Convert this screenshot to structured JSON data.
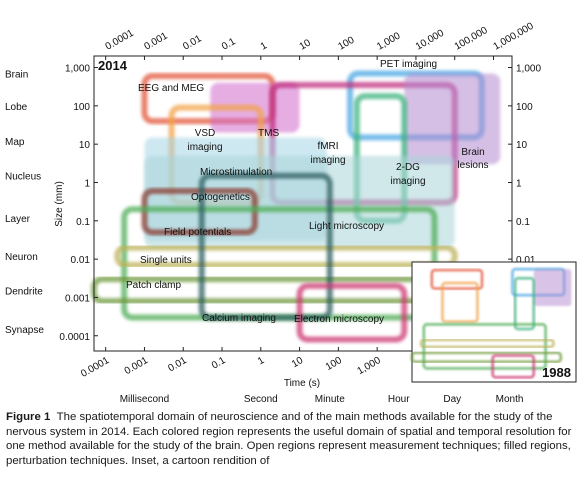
{
  "chart_data": {
    "type": "region",
    "year_label": "2014",
    "inset_year_label": "1988",
    "x_axis": {
      "label": "Time (s)",
      "scale": "log",
      "range": [
        5e-05,
        3000000
      ],
      "ticks": [
        {
          "value": 0.0001,
          "label": "0.0001"
        },
        {
          "value": 0.001,
          "label": "0.001"
        },
        {
          "value": 0.01,
          "label": "0.01"
        },
        {
          "value": 0.1,
          "label": "0.1"
        },
        {
          "value": 1,
          "label": "1"
        },
        {
          "value": 10,
          "label": "10"
        },
        {
          "value": 100,
          "label": "100"
        },
        {
          "value": 1000,
          "label": "1,000"
        },
        {
          "value": 10000,
          "label": "10,000"
        },
        {
          "value": 100000,
          "label": "100,000"
        },
        {
          "value": 1000000,
          "label": "1,000,000"
        }
      ],
      "bottom_ticks": [
        {
          "value": 0.0001,
          "label": "0.0001"
        },
        {
          "value": 0.001,
          "label": "0.001"
        },
        {
          "value": 0.01,
          "label": "0.01"
        },
        {
          "value": 0.1,
          "label": "0.1"
        },
        {
          "value": 1,
          "label": "1"
        },
        {
          "value": 10,
          "label": "10"
        },
        {
          "value": 100,
          "label": "100"
        },
        {
          "value": 1000,
          "label": "1,000"
        }
      ],
      "time_words": [
        {
          "value": 0.001,
          "label": "Millisecond"
        },
        {
          "value": 1,
          "label": "Second"
        },
        {
          "value": 60,
          "label": "Minute"
        },
        {
          "value": 3600,
          "label": "Hour"
        },
        {
          "value": 86400,
          "label": "Day"
        },
        {
          "value": 2592000,
          "label": "Month"
        }
      ]
    },
    "y_axis": {
      "label": "Size (mm)",
      "scale": "log",
      "range": [
        4e-05,
        2000
      ],
      "ticks": [
        {
          "value": 1000,
          "label": "1,000"
        },
        {
          "value": 100,
          "label": "100"
        },
        {
          "value": 10,
          "label": "10"
        },
        {
          "value": 1,
          "label": "1"
        },
        {
          "value": 0.1,
          "label": "0.1"
        },
        {
          "value": 0.01,
          "label": "0.01"
        },
        {
          "value": 0.001,
          "label": "0.001"
        },
        {
          "value": 0.0001,
          "label": "0.0001"
        }
      ],
      "levels": [
        {
          "value": 700,
          "label": "Brain"
        },
        {
          "value": 100,
          "label": "Lobe"
        },
        {
          "value": 12,
          "label": "Map"
        },
        {
          "value": 1.5,
          "label": "Nucleus"
        },
        {
          "value": 0.12,
          "label": "Layer"
        },
        {
          "value": 0.012,
          "label": "Neuron"
        },
        {
          "value": 0.0015,
          "label": "Dendrite"
        },
        {
          "value": 0.00015,
          "label": "Synapse"
        }
      ]
    },
    "regions": [
      {
        "name": "EEG and MEG",
        "x": [
          0.001,
          2
        ],
        "y": [
          40,
          600
        ],
        "color": "#e2563b",
        "kind": "measurement"
      },
      {
        "name": "TMS",
        "x": [
          0.05,
          10
        ],
        "y": [
          20,
          400
        ],
        "color": "#d06acb",
        "kind": "perturbation"
      },
      {
        "name": "VSD imaging",
        "x": [
          0.005,
          1
        ],
        "y": [
          0.3,
          90
        ],
        "color": "#f3a34a",
        "kind": "measurement"
      },
      {
        "name": "PET imaging",
        "x": [
          200,
          500000
        ],
        "y": [
          15,
          700
        ],
        "color": "#4aa7e3",
        "kind": "measurement"
      },
      {
        "name": "fMRI imaging",
        "x": [
          2,
          100000
        ],
        "y": [
          0.3,
          350
        ],
        "color": "#c02d7e",
        "kind": "measurement"
      },
      {
        "name": "Brain lesions",
        "x": [
          5000,
          1500000
        ],
        "y": [
          3,
          700
        ],
        "color": "#b48ad0",
        "kind": "perturbation"
      },
      {
        "name": "2-DG imaging",
        "x": [
          300,
          5000
        ],
        "y": [
          0.1,
          180
        ],
        "color": "#3fb37f",
        "kind": "measurement"
      },
      {
        "name": "Microstimulation",
        "x": [
          0.001,
          50
        ],
        "y": [
          0.03,
          15
        ],
        "color": "#a5d6e6",
        "kind": "perturbation"
      },
      {
        "name": "Optogenetics",
        "x": [
          0.001,
          100000
        ],
        "y": [
          0.02,
          5
        ],
        "color": "#a9d6d8",
        "kind": "perturbation"
      },
      {
        "name": "Field potentials",
        "x": [
          0.001,
          0.7
        ],
        "y": [
          0.05,
          0.6
        ],
        "color": "#8a3a2f",
        "kind": "measurement"
      },
      {
        "name": "Light microscopy",
        "x": [
          0.0003,
          30000
        ],
        "y": [
          0.0003,
          0.2
        ],
        "color": "#4fae55",
        "kind": "measurement"
      },
      {
        "name": "Single units",
        "x": [
          0.0002,
          100000
        ],
        "y": [
          0.007,
          0.02
        ],
        "color": "#bcb15a",
        "kind": "measurement"
      },
      {
        "name": "Patch clamp",
        "x": [
          5e-05,
          300000
        ],
        "y": [
          0.0008,
          0.003
        ],
        "color": "#6f9a3c",
        "kind": "measurement"
      },
      {
        "name": "Calcium imaging",
        "x": [
          0.03,
          60
        ],
        "y": [
          0.0003,
          1.5
        ],
        "color": "#2e5f60",
        "kind": "measurement"
      },
      {
        "name": "Electron microscopy",
        "x": [
          10,
          5000
        ],
        "y": [
          8e-05,
          0.002
        ],
        "color": "#cc3a72",
        "kind": "measurement"
      }
    ]
  },
  "caption": {
    "label": "Figure 1",
    "text": "The spatiotemporal domain of neuroscience and of the main methods available for the study of the nervous system in 2014. Each colored region represents the useful domain of spatial and temporal resolution for one method available for the study of the brain. Open regions represent measurement techniques; filled regions, perturbation techniques. Inset, a cartoon rendition of"
  }
}
